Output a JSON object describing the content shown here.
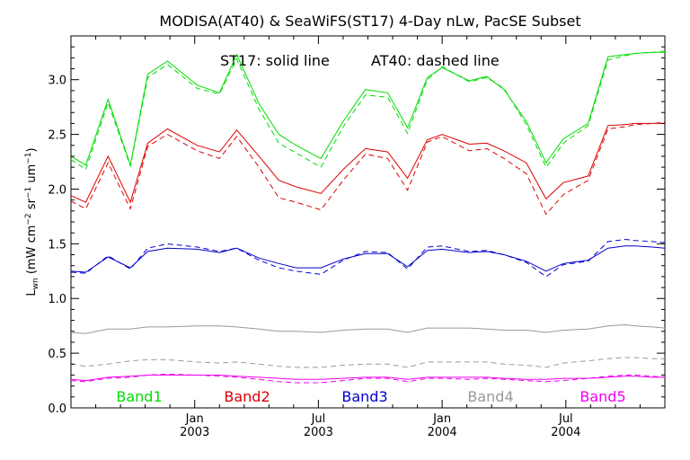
{
  "chart_data": {
    "type": "line",
    "title": "MODISA(AT40) & SeaWiFS(ST17) 4-Day nLw, PacSE Subset",
    "subtitle_solid": "ST17: solid line",
    "subtitle_dashed": "AT40: dashed line",
    "ylabel": {
      "main": "L",
      "main_sub": "wn",
      "open": " (mW cm",
      "sup1": "−2",
      "mid1": " sr",
      "sup2": "−1",
      "mid2": " um",
      "sup3": "−1",
      "close": ")"
    },
    "xlim": [
      0,
      24
    ],
    "ylim": [
      0.0,
      3.4
    ],
    "yticks": [
      {
        "v": 0.0,
        "label": "0.0"
      },
      {
        "v": 0.5,
        "label": "0.5"
      },
      {
        "v": 1.0,
        "label": "1.0"
      },
      {
        "v": 1.5,
        "label": "1.5"
      },
      {
        "v": 2.0,
        "label": "2.0"
      },
      {
        "v": 2.5,
        "label": "2.5"
      },
      {
        "v": 3.0,
        "label": "3.0"
      }
    ],
    "xticks": [
      {
        "v": 5.0,
        "month": "Jan",
        "year": "2003"
      },
      {
        "v": 10.0,
        "month": "Jul",
        "year": "2003"
      },
      {
        "v": 15.0,
        "month": "Jan",
        "year": "2004"
      },
      {
        "v": 20.0,
        "month": "Jul",
        "year": "2004"
      }
    ],
    "x": [
      0.0,
      0.6,
      1.5,
      2.4,
      3.1,
      3.9,
      5.1,
      6.0,
      6.7,
      7.6,
      8.4,
      9.1,
      10.1,
      11.0,
      11.9,
      12.8,
      13.6,
      14.4,
      15.0,
      16.1,
      16.8,
      17.5,
      18.4,
      19.2,
      19.9,
      20.9,
      21.7,
      22.4,
      22.8,
      23.5,
      24.0
    ],
    "series": [
      {
        "name": "Band1",
        "color": "#00dd00",
        "style": "solid",
        "values": [
          2.3,
          2.22,
          2.82,
          2.22,
          3.05,
          3.17,
          2.95,
          2.88,
          3.23,
          2.78,
          2.5,
          2.4,
          2.28,
          2.62,
          2.91,
          2.88,
          2.56,
          3.02,
          3.11,
          2.99,
          3.03,
          2.91,
          2.62,
          2.24,
          2.46,
          2.6,
          3.21,
          3.23,
          3.24,
          3.25,
          3.25
        ]
      },
      {
        "name": "",
        "color": "#00dd00",
        "style": "dashed",
        "values": [
          2.27,
          2.18,
          2.79,
          2.21,
          3.02,
          3.14,
          2.92,
          2.87,
          3.19,
          2.73,
          2.42,
          2.33,
          2.2,
          2.57,
          2.86,
          2.84,
          2.51,
          3.0,
          3.12,
          2.98,
          3.02,
          2.92,
          2.59,
          2.2,
          2.42,
          2.58,
          3.18,
          3.22,
          3.24,
          3.25,
          3.26
        ]
      },
      {
        "name": "Band2",
        "color": "#dd0000",
        "style": "solid",
        "values": [
          1.94,
          1.88,
          2.3,
          1.88,
          2.42,
          2.55,
          2.4,
          2.34,
          2.54,
          2.3,
          2.08,
          2.02,
          1.96,
          2.18,
          2.37,
          2.34,
          2.1,
          2.45,
          2.5,
          2.41,
          2.42,
          2.35,
          2.24,
          1.91,
          2.06,
          2.12,
          2.58,
          2.59,
          2.6,
          2.6,
          2.6
        ]
      },
      {
        "name": "",
        "color": "#dd0000",
        "style": "dashed",
        "values": [
          1.89,
          1.82,
          2.24,
          1.82,
          2.39,
          2.5,
          2.35,
          2.28,
          2.48,
          2.2,
          1.92,
          1.88,
          1.81,
          2.08,
          2.32,
          2.28,
          1.99,
          2.43,
          2.48,
          2.35,
          2.37,
          2.28,
          2.14,
          1.77,
          1.95,
          2.08,
          2.55,
          2.57,
          2.59,
          2.6,
          2.61
        ]
      },
      {
        "name": "Band3",
        "color": "#0000cc",
        "style": "solid",
        "values": [
          1.25,
          1.24,
          1.38,
          1.28,
          1.43,
          1.46,
          1.45,
          1.42,
          1.46,
          1.37,
          1.32,
          1.28,
          1.28,
          1.36,
          1.41,
          1.41,
          1.29,
          1.44,
          1.45,
          1.42,
          1.43,
          1.4,
          1.34,
          1.25,
          1.32,
          1.35,
          1.46,
          1.48,
          1.48,
          1.47,
          1.46
        ]
      },
      {
        "name": "",
        "color": "#0000cc",
        "style": "dashed",
        "values": [
          1.24,
          1.23,
          1.39,
          1.27,
          1.46,
          1.5,
          1.47,
          1.43,
          1.46,
          1.35,
          1.28,
          1.25,
          1.22,
          1.35,
          1.43,
          1.42,
          1.27,
          1.47,
          1.48,
          1.43,
          1.44,
          1.4,
          1.33,
          1.2,
          1.31,
          1.34,
          1.52,
          1.54,
          1.53,
          1.52,
          1.51
        ]
      },
      {
        "name": "Band4",
        "color": "#999999",
        "style": "solid",
        "values": [
          0.69,
          0.68,
          0.72,
          0.72,
          0.74,
          0.74,
          0.75,
          0.75,
          0.74,
          0.72,
          0.7,
          0.7,
          0.69,
          0.71,
          0.72,
          0.72,
          0.69,
          0.73,
          0.73,
          0.73,
          0.72,
          0.71,
          0.71,
          0.69,
          0.71,
          0.72,
          0.75,
          0.76,
          0.75,
          0.74,
          0.73
        ]
      },
      {
        "name": "",
        "color": "#999999",
        "style": "dashed",
        "values": [
          0.4,
          0.38,
          0.4,
          0.43,
          0.44,
          0.44,
          0.42,
          0.41,
          0.42,
          0.4,
          0.38,
          0.37,
          0.37,
          0.39,
          0.4,
          0.4,
          0.37,
          0.42,
          0.42,
          0.42,
          0.42,
          0.4,
          0.39,
          0.37,
          0.41,
          0.43,
          0.45,
          0.46,
          0.46,
          0.45,
          0.45
        ]
      },
      {
        "name": "Band5",
        "color": "#ee00ee",
        "style": "solid",
        "values": [
          0.26,
          0.25,
          0.28,
          0.29,
          0.3,
          0.3,
          0.3,
          0.3,
          0.29,
          0.28,
          0.27,
          0.26,
          0.26,
          0.27,
          0.28,
          0.28,
          0.26,
          0.28,
          0.28,
          0.28,
          0.28,
          0.27,
          0.26,
          0.26,
          0.27,
          0.27,
          0.28,
          0.29,
          0.29,
          0.28,
          0.28
        ]
      },
      {
        "name": "",
        "color": "#ee00ee",
        "style": "dashed",
        "values": [
          0.25,
          0.24,
          0.27,
          0.28,
          0.3,
          0.31,
          0.3,
          0.29,
          0.28,
          0.26,
          0.24,
          0.23,
          0.23,
          0.25,
          0.27,
          0.27,
          0.24,
          0.27,
          0.27,
          0.26,
          0.27,
          0.26,
          0.25,
          0.24,
          0.25,
          0.27,
          0.29,
          0.3,
          0.3,
          0.29,
          0.28
        ]
      }
    ],
    "legend": [
      {
        "label": "Band1",
        "color": "#00dd00"
      },
      {
        "label": "Band2",
        "color": "#dd0000"
      },
      {
        "label": "Band3",
        "color": "#0000cc"
      },
      {
        "label": "Band4",
        "color": "#999999"
      },
      {
        "label": "Band5",
        "color": "#ee00ee"
      }
    ],
    "legend_placement": "bottom-inside"
  }
}
